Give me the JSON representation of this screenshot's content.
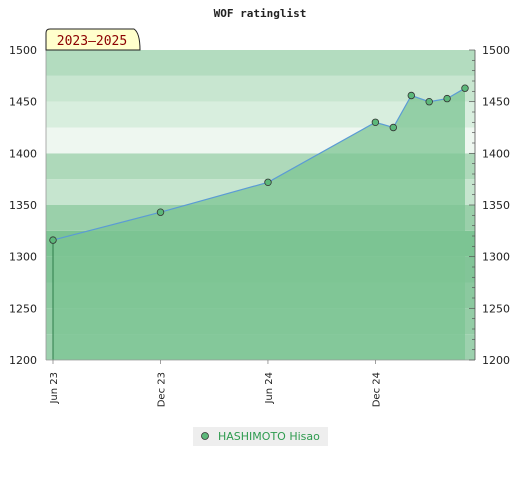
{
  "chart_data": {
    "type": "area",
    "title": "WOF ratinglist",
    "period_label": "2023–2025",
    "x_ticks": [
      "Jun 23",
      "Dec 23",
      "Jun 24",
      "Dec 24"
    ],
    "y_ticks": [
      1200,
      1250,
      1300,
      1350,
      1400,
      1450,
      1500
    ],
    "ylim": [
      1200,
      1500
    ],
    "xlim": [
      "2023-06",
      "2025-05"
    ],
    "grid": "horizontal bands",
    "legend_position": "bottom",
    "series": [
      {
        "name": "HASHIMOTO Hisao",
        "color": "#2e9b4f",
        "points": [
          {
            "x": "2023-06",
            "y": 1316
          },
          {
            "x": "2023-12",
            "y": 1343
          },
          {
            "x": "2024-06",
            "y": 1372
          },
          {
            "x": "2024-12",
            "y": 1430
          },
          {
            "x": "2025-01",
            "y": 1425
          },
          {
            "x": "2025-02",
            "y": 1456
          },
          {
            "x": "2025-03",
            "y": 1450
          },
          {
            "x": "2025-04",
            "y": 1453
          },
          {
            "x": "2025-05",
            "y": 1463
          }
        ]
      }
    ],
    "colors": {
      "area_fill": "#7cc493",
      "line": "#5b9bd5",
      "marker_fill": "#5cb87a",
      "badge_bg": "#ffffcc",
      "legend_bg": "#eeeeee"
    }
  }
}
